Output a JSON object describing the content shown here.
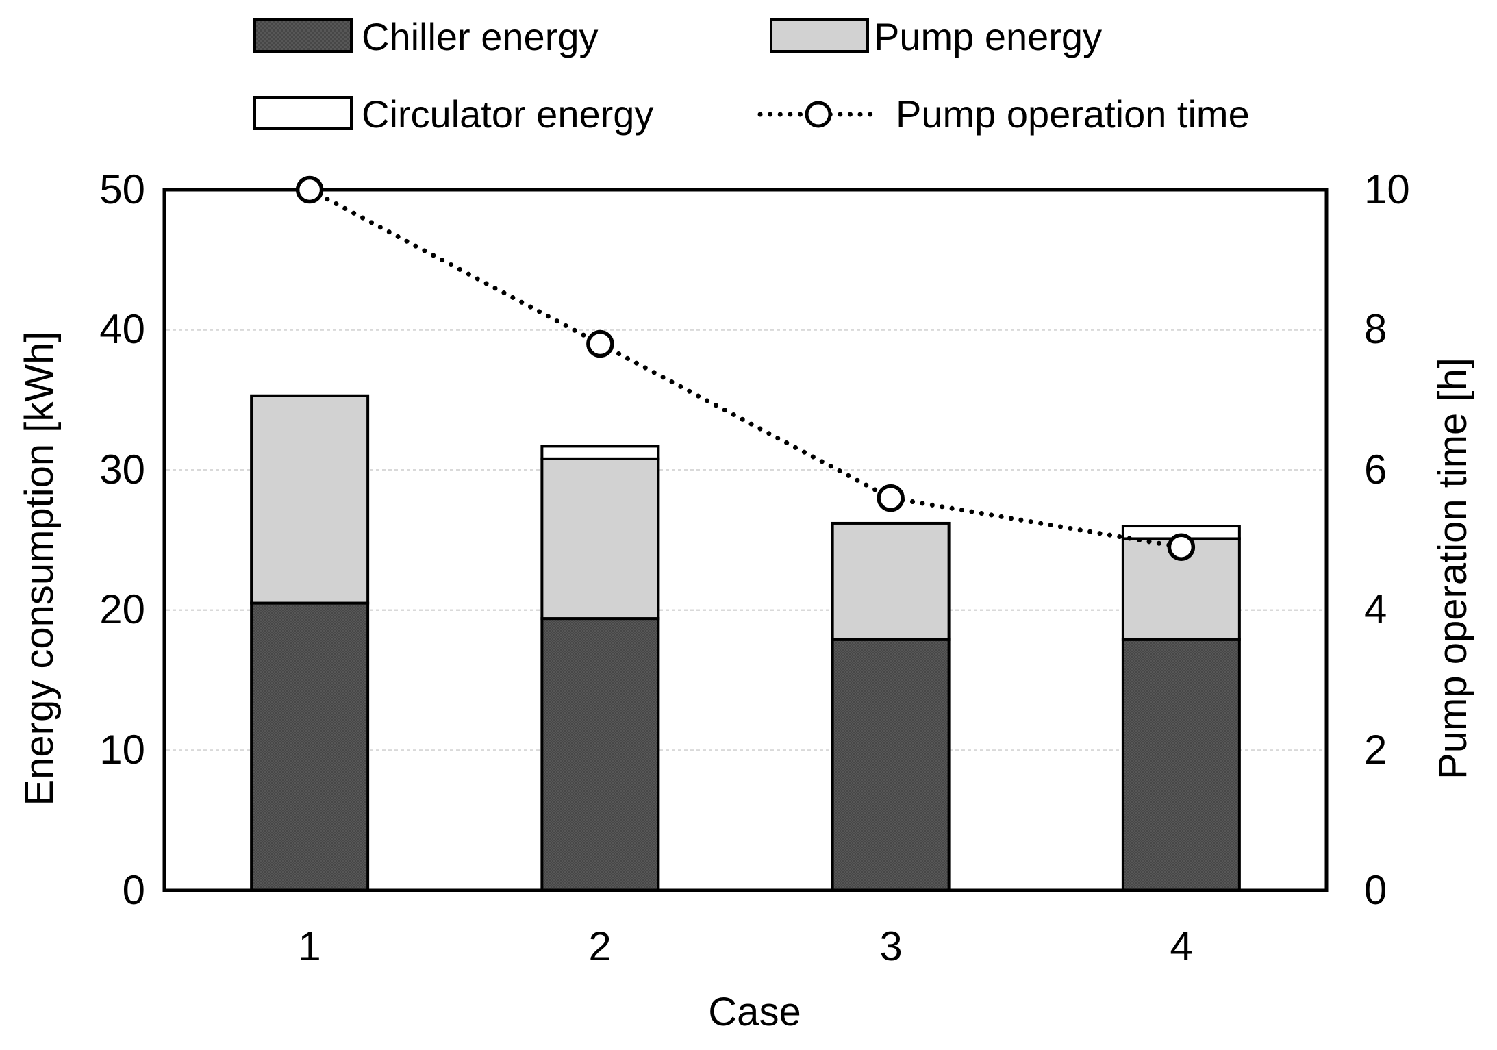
{
  "legend": {
    "items": [
      {
        "label": "Chiller energy"
      },
      {
        "label": "Pump energy"
      },
      {
        "label": "Circulator energy"
      },
      {
        "label": "Pump operation time"
      }
    ]
  },
  "chart_data": {
    "type": "combo: stacked bar (left axis) + dotted line with circle markers (right axis)",
    "categories": [
      "1",
      "2",
      "3",
      "4"
    ],
    "series": [
      {
        "name": "Chiller energy",
        "type": "bar",
        "stack": true,
        "color": "#4e4e4e",
        "pattern": "checker",
        "values": [
          20.5,
          19.4,
          17.9,
          17.9
        ]
      },
      {
        "name": "Pump energy",
        "type": "bar",
        "stack": true,
        "color": "#d2d2d2",
        "values": [
          14.8,
          11.4,
          8.3,
          7.2
        ]
      },
      {
        "name": "Circulator energy",
        "type": "bar",
        "stack": true,
        "color": "#ffffff",
        "values": [
          0,
          0.9,
          0,
          0.9
        ]
      },
      {
        "name": "Pump operation time",
        "type": "line",
        "axis": "right",
        "style": "dotted",
        "marker": "circle",
        "values": [
          10.0,
          7.8,
          5.6,
          4.9
        ]
      }
    ],
    "bar_totals": [
      35.3,
      31.7,
      26.2,
      26.0
    ],
    "xlabel": "Case",
    "left_axis": {
      "label": "Energy consumption [kWh]",
      "min": 0,
      "max": 50,
      "ticks": [
        "0",
        "10",
        "20",
        "30",
        "40",
        "50"
      ]
    },
    "right_axis": {
      "label": "Pump operation time [h]",
      "min": 0,
      "max": 10,
      "ticks": [
        "0",
        "2",
        "4",
        "6",
        "8",
        "10"
      ]
    },
    "grid": "horizontal gridlines every 10 kWh",
    "legend_position": "top"
  },
  "colors": {
    "chiller_fill_dark": "#474747",
    "chiller_fill_light": "#575757",
    "pump_fill": "#d2d2d2",
    "circulator_fill": "#ffffff",
    "line_color": "#000000",
    "gridline": "#d9d9d9",
    "axis_border": "#000000",
    "background": "#ffffff"
  }
}
